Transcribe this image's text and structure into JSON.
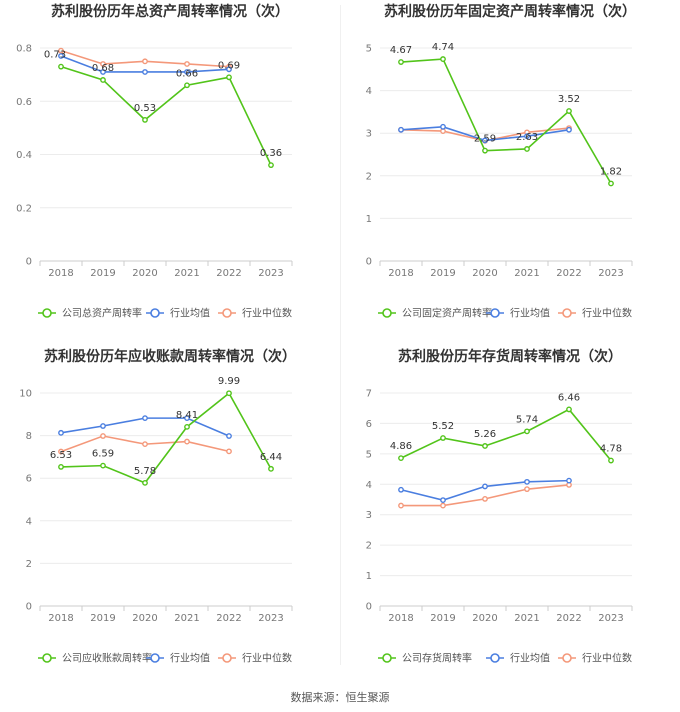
{
  "source_label": "数据来源：恒生聚源",
  "colors": {
    "company": "#52c41a",
    "avg": "#4a7ee0",
    "median": "#f4987a"
  },
  "chart_data": [
    {
      "type": "line",
      "title": "苏利股份历年总资产周转率情况（次）",
      "categories": [
        "2018",
        "2019",
        "2020",
        "2021",
        "2022",
        "2023"
      ],
      "ylim": [
        0,
        0.8
      ],
      "yticks": [
        0,
        0.2,
        0.4,
        0.6,
        0.8
      ],
      "ytick_labels": [
        "0",
        "0.2",
        "0.4",
        "0.6",
        "0.8"
      ],
      "series": [
        {
          "name": "公司总资产周转率",
          "values": [
            0.73,
            0.68,
            0.53,
            0.66,
            0.69,
            0.36
          ],
          "labels": [
            "0.73",
            "0.68",
            "0.53",
            "0.66",
            "0.69",
            "0.36"
          ]
        },
        {
          "name": "行业均值",
          "values": [
            0.77,
            0.71,
            0.71,
            0.71,
            0.72,
            null
          ]
        },
        {
          "name": "行业中位数",
          "values": [
            0.79,
            0.74,
            0.75,
            0.74,
            0.73,
            null
          ]
        }
      ]
    },
    {
      "type": "line",
      "title": "苏利股份历年固定资产周转率情况（次）",
      "categories": [
        "2018",
        "2019",
        "2020",
        "2021",
        "2022",
        "2023"
      ],
      "ylim": [
        0,
        5
      ],
      "yticks": [
        0,
        1,
        2,
        3,
        4,
        5
      ],
      "ytick_labels": [
        "0",
        "1",
        "2",
        "3",
        "4",
        "5"
      ],
      "series": [
        {
          "name": "公司固定资产周转率",
          "values": [
            4.67,
            4.74,
            2.59,
            2.63,
            3.52,
            1.82
          ],
          "labels": [
            "4.67",
            "4.74",
            "2.59",
            "2.63",
            "3.52",
            "1.82"
          ]
        },
        {
          "name": "行业均值",
          "values": [
            3.08,
            3.15,
            2.83,
            2.93,
            3.08,
            null
          ]
        },
        {
          "name": "行业中位数",
          "values": [
            3.08,
            3.05,
            2.82,
            3.02,
            3.12,
            null
          ]
        }
      ]
    },
    {
      "type": "line",
      "title": "苏利股份历年应收账款周转率情况（次）",
      "categories": [
        "2018",
        "2019",
        "2020",
        "2021",
        "2022",
        "2023"
      ],
      "ylim": [
        0,
        10
      ],
      "yticks": [
        0,
        2,
        4,
        6,
        8,
        10
      ],
      "ytick_labels": [
        "0",
        "2",
        "4",
        "6",
        "8",
        "10"
      ],
      "series": [
        {
          "name": "公司应收账款周转率",
          "values": [
            6.53,
            6.59,
            5.78,
            8.41,
            9.99,
            6.44
          ],
          "labels": [
            "6.53",
            "6.59",
            "5.78",
            "8.41",
            "9.99",
            "6.44"
          ]
        },
        {
          "name": "行业均值",
          "values": [
            8.13,
            8.45,
            8.82,
            8.82,
            7.98,
            null
          ]
        },
        {
          "name": "行业中位数",
          "values": [
            7.25,
            7.98,
            7.6,
            7.72,
            7.26,
            null
          ]
        }
      ]
    },
    {
      "type": "line",
      "title": "苏利股份历年存货周转率情况（次）",
      "categories": [
        "2018",
        "2019",
        "2020",
        "2021",
        "2022",
        "2023"
      ],
      "ylim": [
        0,
        7
      ],
      "yticks": [
        0,
        1,
        2,
        3,
        4,
        5,
        6,
        7
      ],
      "ytick_labels": [
        "0",
        "1",
        "2",
        "3",
        "4",
        "5",
        "6",
        "7"
      ],
      "series": [
        {
          "name": "公司存货周转率",
          "values": [
            4.86,
            5.52,
            5.26,
            5.74,
            6.46,
            4.78
          ],
          "labels": [
            "4.86",
            "5.52",
            "5.26",
            "5.74",
            "6.46",
            "4.78"
          ]
        },
        {
          "name": "行业均值",
          "values": [
            3.82,
            3.48,
            3.93,
            4.08,
            4.12,
            null
          ]
        },
        {
          "name": "行业中位数",
          "values": [
            3.3,
            3.3,
            3.52,
            3.84,
            3.98,
            null
          ]
        }
      ]
    }
  ]
}
